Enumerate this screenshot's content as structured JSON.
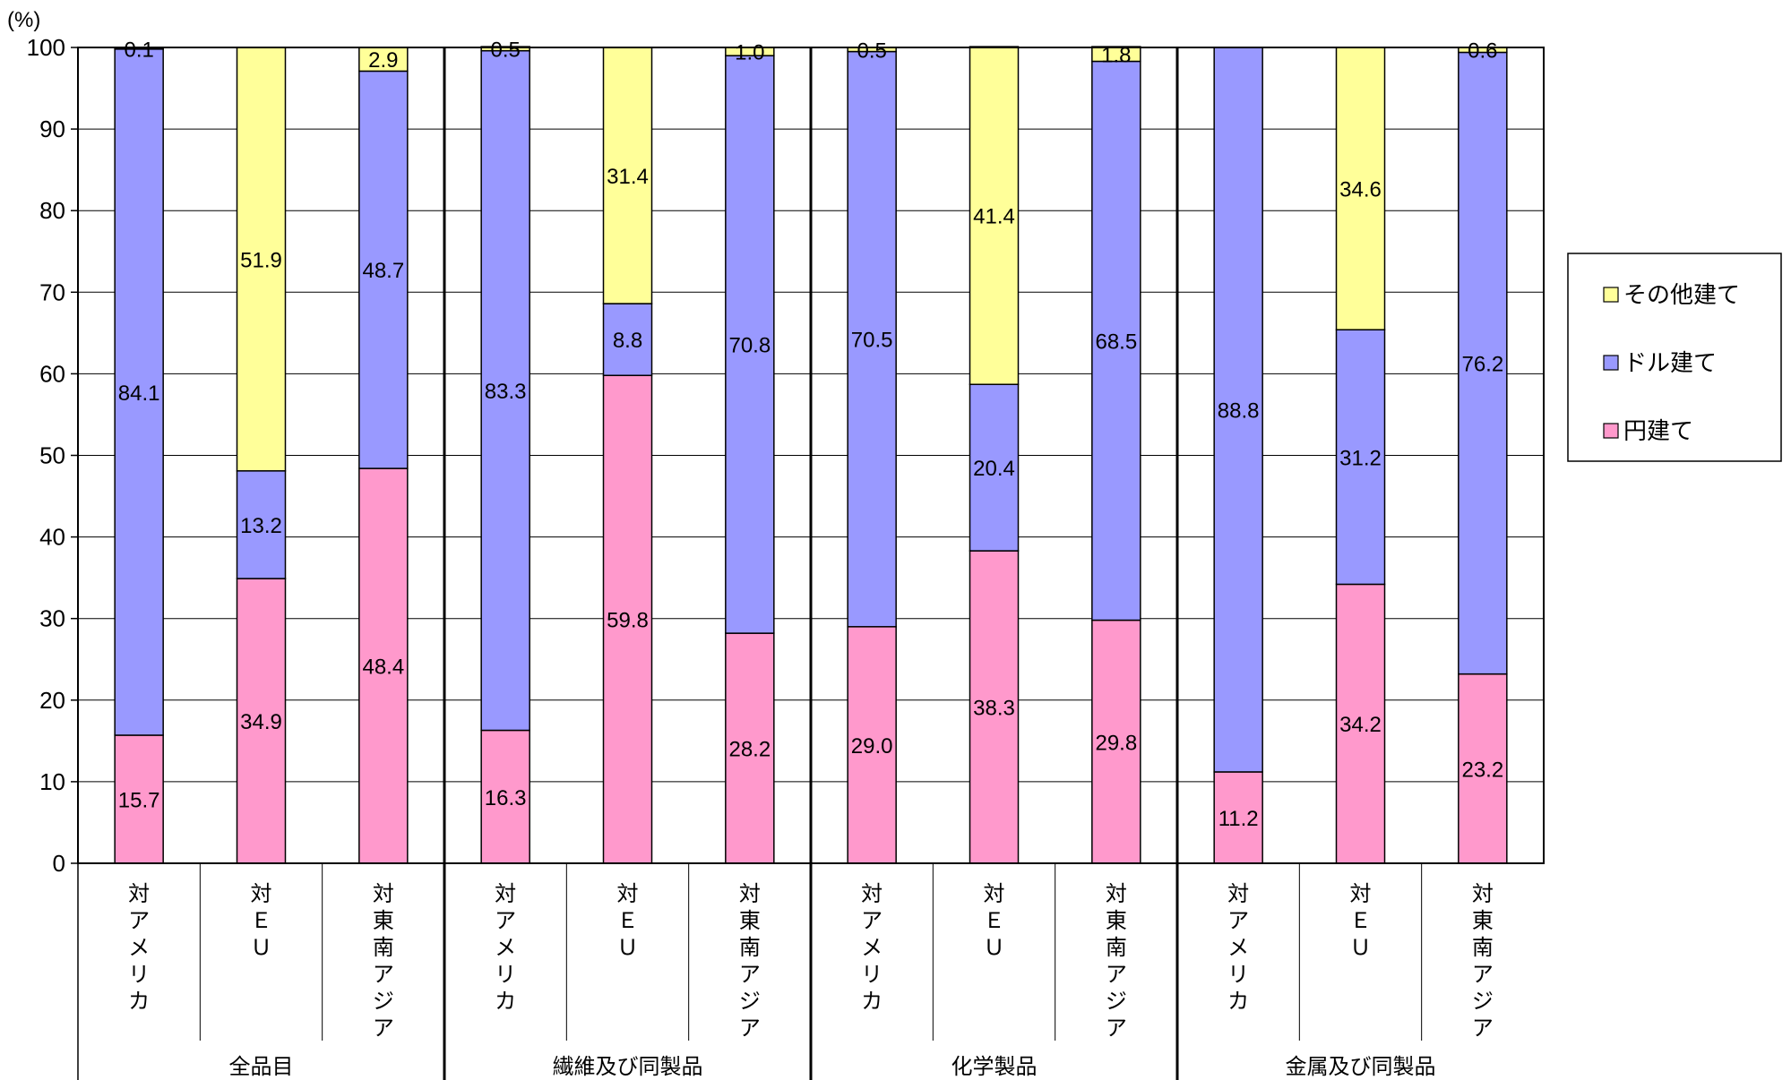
{
  "chart_data": {
    "type": "bar",
    "stacked": true,
    "y_unit": "(%)",
    "ylim": [
      0,
      100
    ],
    "yticks": [
      0,
      10,
      20,
      30,
      40,
      50,
      60,
      70,
      80,
      90,
      100
    ],
    "grid": true,
    "legend_position": "right",
    "groups": [
      {
        "name": "全品目",
        "categories": [
          "対アメリカ",
          "対ＥＵ",
          "対東南アジア"
        ]
      },
      {
        "name": "繊維及び同製品",
        "categories": [
          "対アメリカ",
          "対ＥＵ",
          "対東南アジア"
        ]
      },
      {
        "name": "化学製品",
        "categories": [
          "対アメリカ",
          "対ＥＵ",
          "対東南アジア"
        ]
      },
      {
        "name": "金属及び同製品",
        "categories": [
          "対アメリカ",
          "対ＥＵ",
          "対東南アジア"
        ]
      }
    ],
    "series": [
      {
        "name": "円建て",
        "color": "#ff99cc",
        "values": [
          15.7,
          34.9,
          48.4,
          16.3,
          59.8,
          28.2,
          29.0,
          38.3,
          29.8,
          11.2,
          34.2,
          23.2
        ],
        "labels": [
          "15.7",
          "34.9",
          "48.4",
          "16.3",
          "59.8",
          "28.2",
          "29.0",
          "38.3",
          "29.8",
          "11.2",
          "34.2",
          "23.2"
        ]
      },
      {
        "name": "ドル建て",
        "color": "#9999ff",
        "values": [
          84.1,
          13.2,
          48.7,
          83.3,
          8.8,
          70.8,
          70.5,
          20.4,
          68.5,
          88.8,
          31.2,
          76.2
        ],
        "labels": [
          "84.1",
          "13.2",
          "48.7",
          "83.3",
          "8.8",
          "70.8",
          "70.5",
          "20.4",
          "68.5",
          "88.8",
          "31.2",
          "76.2"
        ]
      },
      {
        "name": "その他建て",
        "color": "#ffff99",
        "values": [
          0.1,
          51.9,
          2.9,
          0.5,
          31.4,
          1.0,
          0.5,
          41.4,
          1.8,
          0.0,
          34.6,
          0.6
        ],
        "labels": [
          "0.1",
          "51.9",
          "2.9",
          "0.5",
          "31.4",
          "1.0",
          "0.5",
          "41.4",
          "1.8",
          "",
          "34.6",
          "0.6"
        ]
      }
    ],
    "legend_order": [
      "その他建て",
      "ドル建て",
      "円建て"
    ]
  }
}
